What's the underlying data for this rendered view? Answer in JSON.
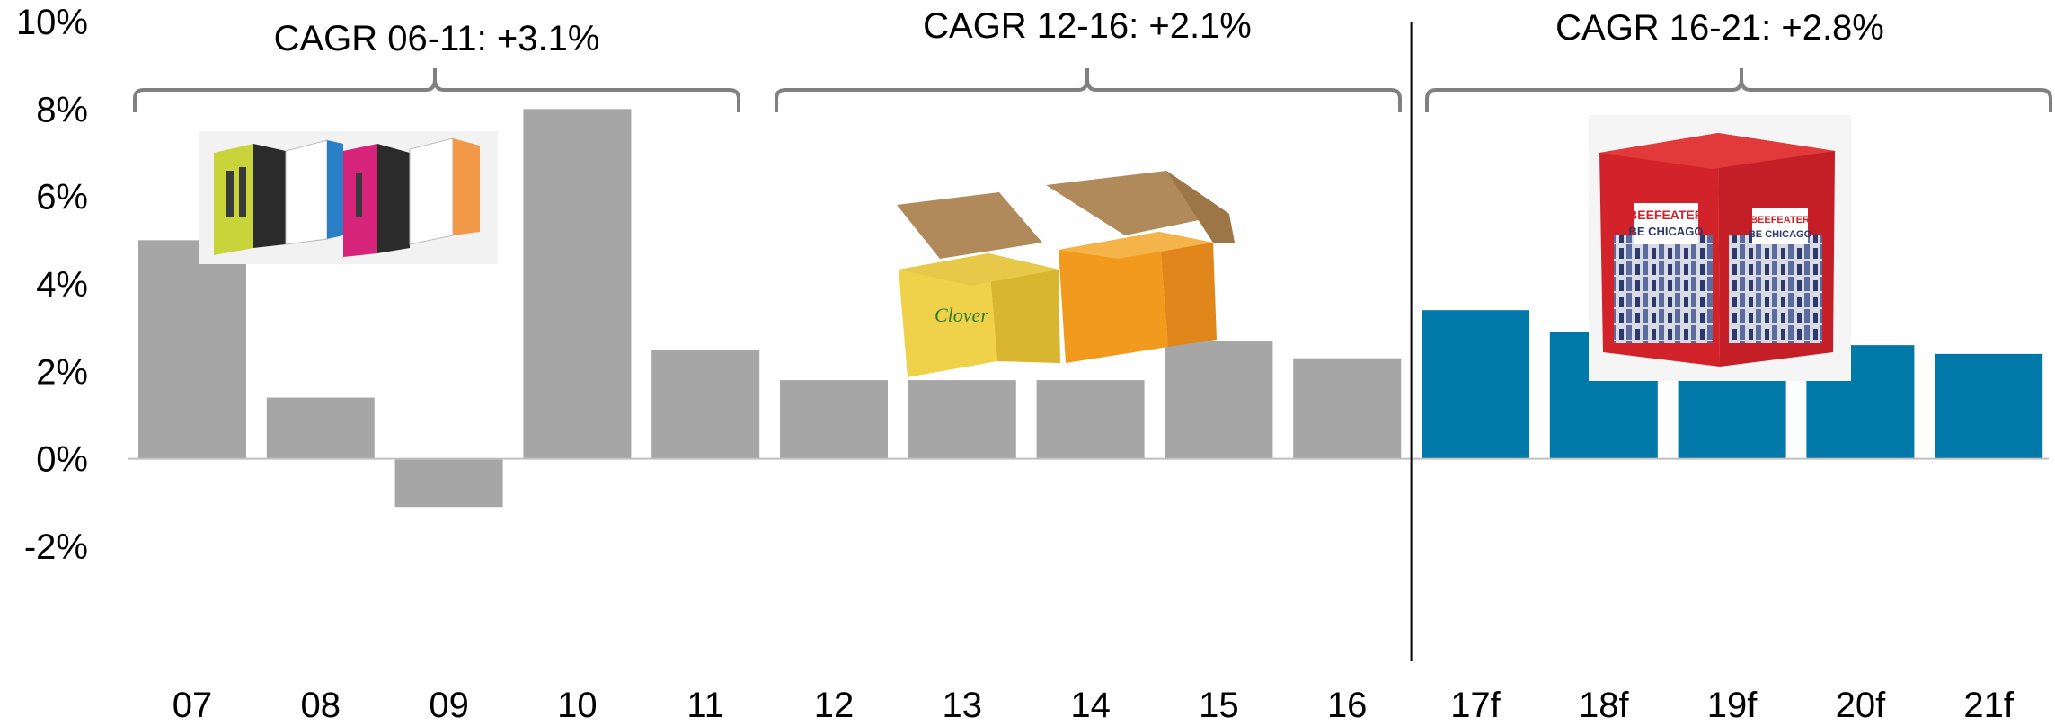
{
  "chart_data": {
    "type": "bar",
    "categories": [
      "07",
      "08",
      "09",
      "10",
      "11",
      "12",
      "13",
      "14",
      "15",
      "16",
      "17f",
      "18f",
      "19f",
      "20f",
      "21f"
    ],
    "values": [
      5.0,
      1.4,
      -1.1,
      8.0,
      2.5,
      1.8,
      1.8,
      1.8,
      2.7,
      2.3,
      3.4,
      2.9,
      2.8,
      2.6,
      2.4
    ],
    "forecast": [
      false,
      false,
      false,
      false,
      false,
      false,
      false,
      false,
      false,
      false,
      true,
      true,
      true,
      true,
      true
    ],
    "colors": {
      "actual": "#a6a6a6",
      "forecast": "#0078a8",
      "axis": "#bfbfbf",
      "divider": "#000000",
      "bracket": "#808080"
    },
    "y_ticks": [
      "10%",
      "8%",
      "6%",
      "4%",
      "2%",
      "0%",
      "-2%"
    ],
    "y_tick_values": [
      10,
      8,
      6,
      4,
      2,
      0,
      -2
    ],
    "ylim": [
      -2,
      10
    ],
    "title": "",
    "xlabel": "",
    "ylabel": "",
    "grid": false,
    "annotations": [
      {
        "text": "CAGR 06-11: +3.1%",
        "span": [
          "07",
          "11"
        ]
      },
      {
        "text": "CAGR 12-16: +2.1%",
        "span": [
          "12",
          "16"
        ]
      },
      {
        "text": "CAGR 16-21: +2.8%",
        "span": [
          "17f",
          "21f"
        ]
      }
    ],
    "divider_after": "16",
    "images": [
      {
        "icon": "wine-box-multipack-icon",
        "period": "06-11"
      },
      {
        "icon": "open-cardboard-food-boxes-icon",
        "period": "12-16"
      },
      {
        "icon": "beefeater-chicago-gin-box-icon",
        "period": "16-21"
      }
    ]
  }
}
